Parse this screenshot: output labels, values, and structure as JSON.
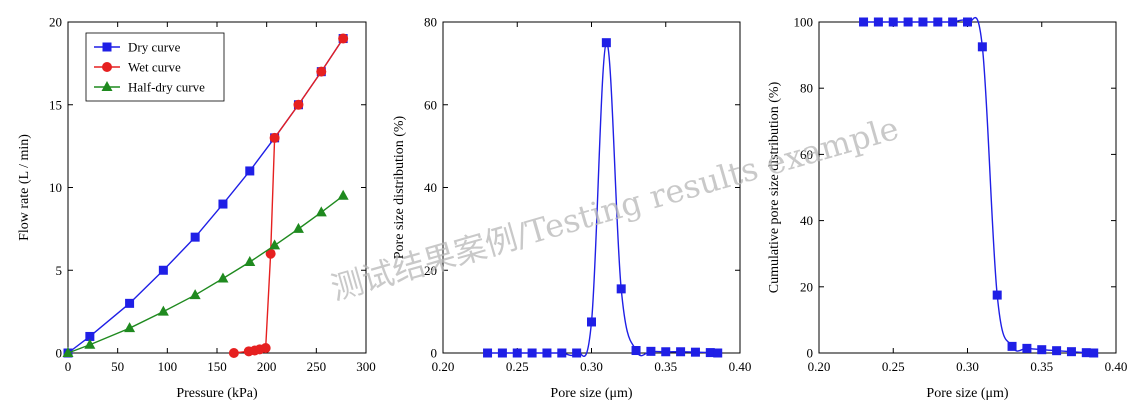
{
  "watermark": "测试结果案例/Testing results example",
  "chart_data": [
    {
      "type": "line",
      "xlabel": "Pressure (kPa)",
      "ylabel": "Flow rate (L / min)",
      "xlim": [
        0,
        300
      ],
      "ylim": [
        0,
        20
      ],
      "xticks": [
        0,
        50,
        100,
        150,
        200,
        250,
        300
      ],
      "yticks": [
        0,
        5,
        10,
        15,
        20
      ],
      "legend_position": "top-left",
      "series": [
        {
          "name": "Dry curve",
          "color": "#1f1fe6",
          "marker": "square",
          "x": [
            0,
            22,
            62,
            96,
            128,
            156,
            183,
            208,
            232,
            255,
            277
          ],
          "y": [
            0,
            1,
            3,
            5,
            7,
            9,
            11,
            13,
            15,
            17,
            19
          ]
        },
        {
          "name": "Wet curve",
          "color": "#e62020",
          "marker": "circle",
          "x": [
            167,
            182,
            188,
            193,
            199,
            204,
            208,
            232,
            255,
            277
          ],
          "y": [
            0,
            0.1,
            0.15,
            0.22,
            0.3,
            6,
            13,
            15,
            17,
            19
          ]
        },
        {
          "name": "Half-dry curve",
          "color": "#1f8a1f",
          "marker": "triangle",
          "x": [
            0,
            22,
            62,
            96,
            128,
            156,
            183,
            208,
            232,
            255,
            277
          ],
          "y": [
            0,
            0.5,
            1.5,
            2.5,
            3.5,
            4.5,
            5.5,
            6.5,
            7.5,
            8.5,
            9.5
          ]
        }
      ]
    },
    {
      "type": "line",
      "xlabel": "Pore size (μm)",
      "ylabel": "Pore size distribution (%)",
      "xlim": [
        0.2,
        0.4
      ],
      "ylim": [
        0,
        80
      ],
      "xticks": [
        0.2,
        0.25,
        0.3,
        0.35,
        0.4
      ],
      "yticks": [
        0,
        20,
        40,
        60,
        80
      ],
      "series": [
        {
          "color": "#1f1fe6",
          "marker": "square",
          "x": [
            0.23,
            0.24,
            0.25,
            0.26,
            0.27,
            0.28,
            0.29,
            0.3,
            0.31,
            0.32,
            0.33,
            0.34,
            0.35,
            0.36,
            0.37,
            0.38,
            0.385
          ],
          "y": [
            0,
            0,
            0,
            0,
            0,
            0,
            0,
            7.5,
            75,
            15.5,
            0.6,
            0.4,
            0.3,
            0.3,
            0.2,
            0.1,
            0
          ]
        }
      ]
    },
    {
      "type": "line",
      "xlabel": "Pore size (μm)",
      "ylabel": "Cumulative pore size distribution (%)",
      "xlim": [
        0.2,
        0.4
      ],
      "ylim": [
        0,
        100
      ],
      "xticks": [
        0.2,
        0.25,
        0.3,
        0.35,
        0.4
      ],
      "yticks": [
        0,
        20,
        40,
        60,
        80,
        100
      ],
      "series": [
        {
          "color": "#1f1fe6",
          "marker": "square",
          "x": [
            0.23,
            0.24,
            0.25,
            0.26,
            0.27,
            0.28,
            0.29,
            0.3,
            0.31,
            0.32,
            0.33,
            0.34,
            0.35,
            0.36,
            0.37,
            0.38,
            0.385
          ],
          "y": [
            100,
            100,
            100,
            100,
            100,
            100,
            100,
            100,
            92.5,
            17.5,
            2,
            1.4,
            1,
            0.7,
            0.4,
            0.1,
            0
          ]
        }
      ]
    }
  ]
}
